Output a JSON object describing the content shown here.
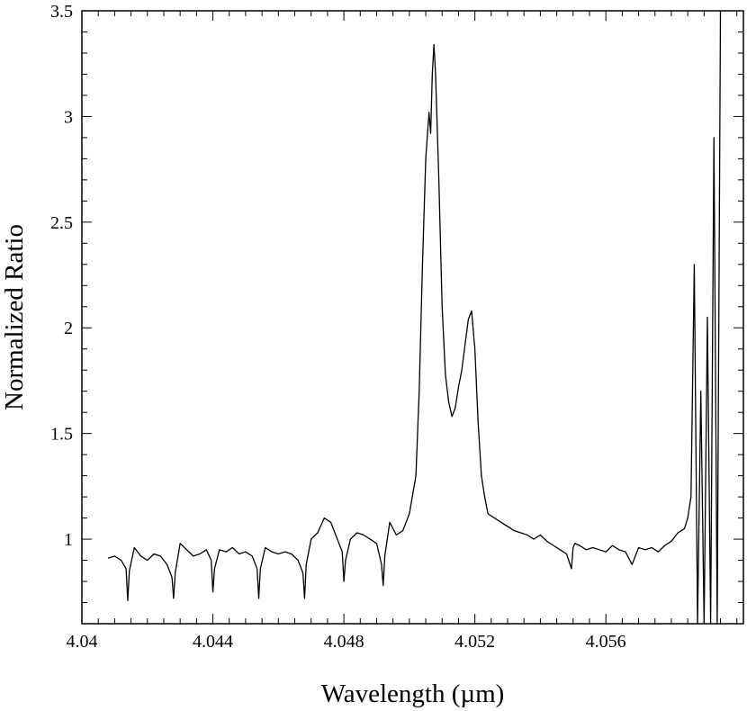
{
  "chart_data": {
    "type": "line",
    "title": "",
    "xlabel": "Wavelength (µm)",
    "ylabel": "Normalized Ratio",
    "xlim": [
      4.04,
      4.0602
    ],
    "ylim": [
      0.6,
      3.5
    ],
    "x_ticks": [
      "4.04",
      "4.044",
      "4.048",
      "4.052",
      "4.056"
    ],
    "y_ticks": [
      "1",
      "1.5",
      "2",
      "2.5",
      "3",
      "3.5"
    ],
    "x_tick_values": [
      4.04,
      4.044,
      4.048,
      4.052,
      4.056
    ],
    "y_tick_values": [
      1,
      1.5,
      2,
      2.5,
      3,
      3.5
    ],
    "x_minor_step": 0.0005,
    "y_minor_step": 0.1,
    "grid": false,
    "series": [
      {
        "color": "#000000",
        "x": [
          4.0408,
          4.041,
          4.0412,
          4.04135,
          4.0414,
          4.04145,
          4.0416,
          4.0418,
          4.042,
          4.0422,
          4.0424,
          4.0426,
          4.04275,
          4.0428,
          4.04285,
          4.043,
          4.0432,
          4.0434,
          4.0436,
          4.0438,
          4.04395,
          4.044,
          4.04405,
          4.0442,
          4.0444,
          4.0446,
          4.0448,
          4.045,
          4.0452,
          4.04535,
          4.0454,
          4.04545,
          4.0456,
          4.0458,
          4.046,
          4.0462,
          4.0464,
          4.0466,
          4.04675,
          4.0468,
          4.04685,
          4.047,
          4.0472,
          4.0474,
          4.0476,
          4.0478,
          4.04795,
          4.048,
          4.04805,
          4.0482,
          4.0484,
          4.0486,
          4.0488,
          4.049,
          4.04915,
          4.0492,
          4.04925,
          4.0494,
          4.0496,
          4.0498,
          4.05,
          4.0502,
          4.0503,
          4.0504,
          4.0505,
          4.0506,
          4.05065,
          4.0507,
          4.05075,
          4.0508,
          4.0509,
          4.051,
          4.0511,
          4.0512,
          4.0513,
          4.0514,
          4.0515,
          4.0516,
          4.0517,
          4.0518,
          4.0519,
          4.052,
          4.0521,
          4.0522,
          4.0523,
          4.0524,
          4.0526,
          4.0528,
          4.053,
          4.0532,
          4.0534,
          4.0536,
          4.0538,
          4.054,
          4.0542,
          4.0544,
          4.0546,
          4.0548,
          4.05495,
          4.055,
          4.05505,
          4.0552,
          4.0554,
          4.0556,
          4.0558,
          4.056,
          4.0562,
          4.0564,
          4.0566,
          4.0568,
          4.057,
          4.0572,
          4.0574,
          4.0576,
          4.0578,
          4.058,
          4.0582,
          4.0584,
          4.0585,
          4.0586,
          4.0587,
          4.0588,
          4.0589,
          4.059,
          4.0591,
          4.0592,
          4.0593,
          4.0594,
          4.0595
        ],
        "y": [
          0.91,
          0.92,
          0.9,
          0.86,
          0.71,
          0.85,
          0.96,
          0.92,
          0.9,
          0.93,
          0.92,
          0.88,
          0.82,
          0.72,
          0.84,
          0.98,
          0.95,
          0.92,
          0.93,
          0.95,
          0.9,
          0.75,
          0.86,
          0.95,
          0.94,
          0.96,
          0.93,
          0.94,
          0.92,
          0.86,
          0.72,
          0.86,
          0.96,
          0.94,
          0.93,
          0.94,
          0.93,
          0.9,
          0.84,
          0.72,
          0.88,
          1.0,
          1.03,
          1.1,
          1.08,
          1.0,
          0.94,
          0.8,
          0.9,
          1.0,
          1.03,
          1.02,
          1.0,
          0.98,
          0.88,
          0.78,
          0.92,
          1.08,
          1.02,
          1.04,
          1.12,
          1.3,
          1.7,
          2.3,
          2.8,
          3.02,
          2.92,
          3.2,
          3.34,
          3.2,
          2.7,
          2.1,
          1.78,
          1.65,
          1.58,
          1.62,
          1.72,
          1.8,
          1.92,
          2.04,
          2.08,
          1.9,
          1.55,
          1.3,
          1.2,
          1.12,
          1.1,
          1.08,
          1.06,
          1.04,
          1.03,
          1.02,
          1.0,
          1.02,
          0.99,
          0.97,
          0.95,
          0.93,
          0.86,
          0.96,
          0.98,
          0.97,
          0.95,
          0.96,
          0.95,
          0.94,
          0.97,
          0.95,
          0.94,
          0.88,
          0.96,
          0.95,
          0.96,
          0.94,
          0.97,
          0.99,
          1.03,
          1.05,
          1.1,
          1.2,
          2.3,
          0.6,
          1.7,
          0.6,
          2.05,
          0.6,
          2.9,
          0.6,
          3.5
        ]
      }
    ]
  }
}
